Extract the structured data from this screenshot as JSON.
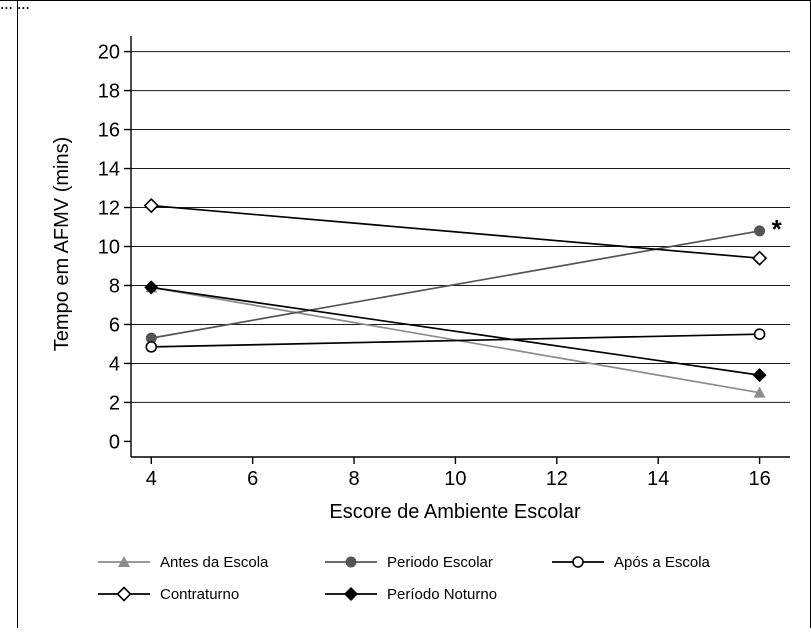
{
  "header_fragment": "... ...",
  "chart_data": {
    "type": "line",
    "xlabel": "Escore de Ambiente Escolar",
    "ylabel": "Tempo em AFMV (mins)",
    "xlim": [
      3.6,
      16.6
    ],
    "ylim": [
      -0.8,
      20.8
    ],
    "x_ticks": [
      4,
      6,
      8,
      10,
      12,
      14,
      16
    ],
    "y_ticks": [
      0,
      2,
      4,
      6,
      8,
      10,
      12,
      14,
      16,
      18,
      20
    ],
    "grid": "horizontal",
    "legend_position": "bottom",
    "x": [
      4,
      16
    ],
    "series": [
      {
        "name": "Antes da Escola",
        "values": [
          7.9,
          2.5
        ],
        "color": "#8c8c8c",
        "marker": "triangle-filled"
      },
      {
        "name": "Periodo Escolar",
        "values": [
          5.3,
          10.8
        ],
        "color": "#555555",
        "marker": "circle-filled"
      },
      {
        "name": "Após a Escola",
        "values": [
          4.85,
          5.5
        ],
        "color": "#000000",
        "marker": "circle-open"
      },
      {
        "name": "Contraturno",
        "values": [
          12.1,
          9.4
        ],
        "color": "#000000",
        "marker": "diamond-open"
      },
      {
        "name": "Período Noturno",
        "values": [
          7.9,
          3.4
        ],
        "color": "#000000",
        "marker": "diamond-filled"
      }
    ],
    "annotations": [
      {
        "text": "*",
        "series": "Periodo Escolar",
        "x": 16,
        "y": 10.8
      }
    ]
  }
}
